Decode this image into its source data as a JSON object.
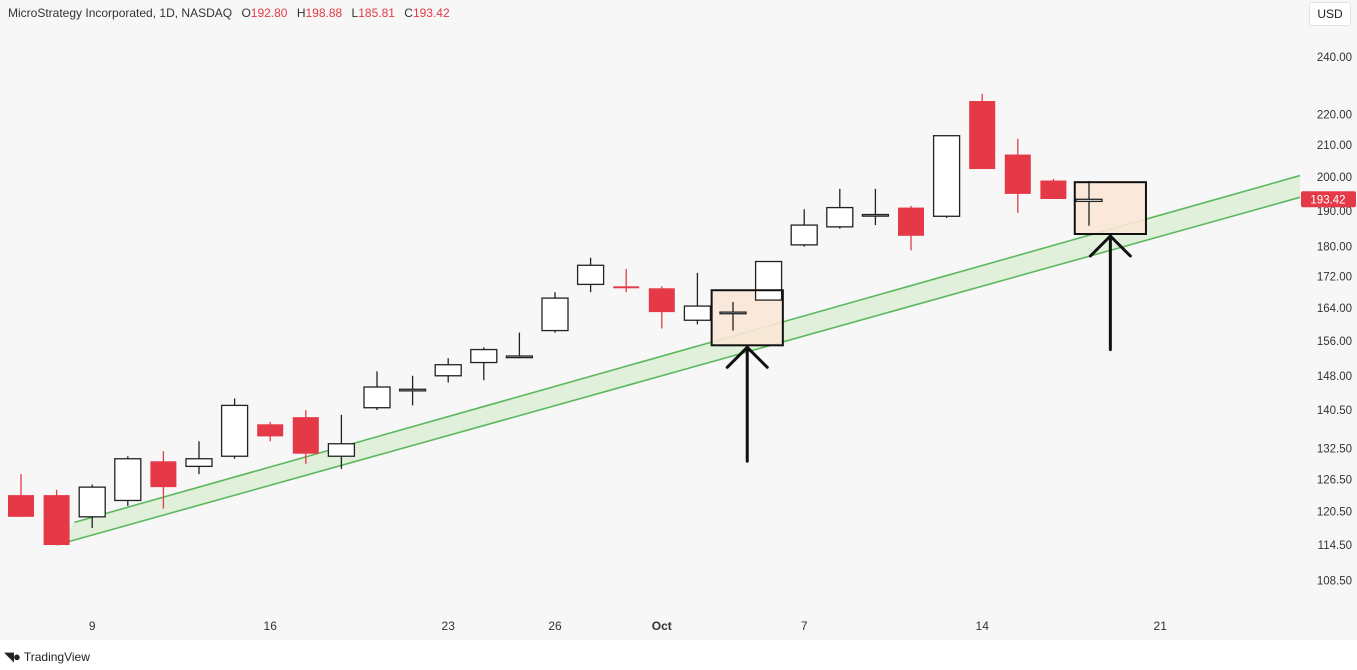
{
  "header": {
    "symbol": "MicroStrategy Incorporated, 1D, NASDAQ",
    "ohlc": [
      {
        "key": "O",
        "value": "192.80"
      },
      {
        "key": "H",
        "value": "198.88"
      },
      {
        "key": "L",
        "value": "185.81"
      },
      {
        "key": "C",
        "value": "193.42"
      }
    ]
  },
  "currency": "USD",
  "brand": "TradingView",
  "colors": {
    "down": "#e53948",
    "up": "#222222",
    "channel_line": "#5cb85c",
    "channel_fill": "#dcefd6",
    "box_fill": "#f9e7d6"
  },
  "chart_data": {
    "type": "candlestick",
    "last_price_label": "193.42",
    "y_ticks": [
      108.5,
      114.5,
      120.5,
      126.5,
      132.5,
      140.5,
      148.0,
      156.0,
      164.0,
      172.0,
      180.0,
      190.0,
      200.0,
      210.0,
      220.0,
      240.0
    ],
    "y_tick_labels": [
      "108.50",
      "114.50",
      "120.50",
      "126.50",
      "132.50",
      "140.50",
      "148.00",
      "156.00",
      "164.00",
      "172.00",
      "180.00",
      "190.00",
      "200.00",
      "210.00",
      "220.00",
      "240.00"
    ],
    "x_labels": [
      {
        "index": 2,
        "label": "9",
        "bold": false
      },
      {
        "index": 7,
        "label": "16",
        "bold": false
      },
      {
        "index": 12,
        "label": "23",
        "bold": false
      },
      {
        "index": 15,
        "label": "26",
        "bold": false
      },
      {
        "index": 18,
        "label": "Oct",
        "bold": true
      },
      {
        "index": 22,
        "label": "7",
        "bold": false
      },
      {
        "index": 27,
        "label": "14",
        "bold": false
      },
      {
        "index": 32,
        "label": "21",
        "bold": false
      }
    ],
    "candles": [
      {
        "o": 123.5,
        "h": 127.5,
        "l": 119.5,
        "c": 119.5
      },
      {
        "o": 123.5,
        "h": 124.5,
        "l": 114.5,
        "c": 114.5
      },
      {
        "o": 119.5,
        "h": 125.5,
        "l": 117.5,
        "c": 125.0
      },
      {
        "o": 122.5,
        "h": 131.0,
        "l": 121.5,
        "c": 130.5
      },
      {
        "o": 130.0,
        "h": 132.0,
        "l": 121.0,
        "c": 125.0
      },
      {
        "o": 129.0,
        "h": 134.0,
        "l": 127.5,
        "c": 130.5
      },
      {
        "o": 131.0,
        "h": 143.0,
        "l": 130.5,
        "c": 141.5
      },
      {
        "o": 137.5,
        "h": 138.0,
        "l": 134.0,
        "c": 135.0
      },
      {
        "o": 139.0,
        "h": 140.5,
        "l": 129.5,
        "c": 131.5
      },
      {
        "o": 131.0,
        "h": 139.5,
        "l": 128.5,
        "c": 133.5
      },
      {
        "o": 141.0,
        "h": 149.0,
        "l": 140.5,
        "c": 145.5
      },
      {
        "o": 145.0,
        "h": 148.0,
        "l": 141.5,
        "c": 145.0
      },
      {
        "o": 148.0,
        "h": 152.0,
        "l": 146.5,
        "c": 150.5
      },
      {
        "o": 151.0,
        "h": 154.5,
        "l": 147.0,
        "c": 154.0
      },
      {
        "o": 152.5,
        "h": 158.0,
        "l": 152.0,
        "c": 152.5
      },
      {
        "o": 158.5,
        "h": 168.0,
        "l": 158.0,
        "c": 166.5
      },
      {
        "o": 170.0,
        "h": 177.0,
        "l": 168.0,
        "c": 175.0
      },
      {
        "o": 169.5,
        "h": 174.0,
        "l": 168.0,
        "c": 169.0
      },
      {
        "o": 169.0,
        "h": 169.5,
        "l": 159.0,
        "c": 163.0
      },
      {
        "o": 161.0,
        "h": 173.0,
        "l": 160.0,
        "c": 164.5
      },
      {
        "o": 163.0,
        "h": 165.5,
        "l": 158.5,
        "c": 163.0
      },
      {
        "o": 166.0,
        "h": 176.0,
        "l": 166.0,
        "c": 176.0
      },
      {
        "o": 180.5,
        "h": 190.5,
        "l": 180.0,
        "c": 186.0
      },
      {
        "o": 185.5,
        "h": 196.5,
        "l": 185.0,
        "c": 191.0
      },
      {
        "o": 189.0,
        "h": 196.5,
        "l": 186.0,
        "c": 189.0
      },
      {
        "o": 191.0,
        "h": 191.5,
        "l": 179.0,
        "c": 183.0
      },
      {
        "o": 188.5,
        "h": 213.0,
        "l": 188.0,
        "c": 213.0
      },
      {
        "o": 224.5,
        "h": 227.0,
        "l": 202.5,
        "c": 202.5
      },
      {
        "o": 207.0,
        "h": 212.0,
        "l": 189.5,
        "c": 195.0
      },
      {
        "o": 199.0,
        "h": 199.5,
        "l": 193.5,
        "c": 193.5
      },
      {
        "o": 192.8,
        "h": 198.88,
        "l": 185.81,
        "c": 193.42
      }
    ],
    "channel": {
      "lower": [
        {
          "i": 1,
          "v": 114.5
        },
        {
          "i": 36.5,
          "v": 194.0
        }
      ],
      "upper": [
        {
          "i": 1.5,
          "v": 118.5
        },
        {
          "i": 36.5,
          "v": 200.5
        }
      ]
    },
    "highlight_boxes": [
      {
        "i1": 19.4,
        "i2": 21.4,
        "top": 168.5,
        "bottom": 155.0
      },
      {
        "i1": 29.6,
        "i2": 31.6,
        "top": 198.5,
        "bottom": 183.5
      }
    ],
    "arrows": [
      {
        "i": 20.4,
        "from": 130.0,
        "to": 155.0
      },
      {
        "i": 30.6,
        "from": 154.0,
        "to": 183.5
      }
    ]
  }
}
